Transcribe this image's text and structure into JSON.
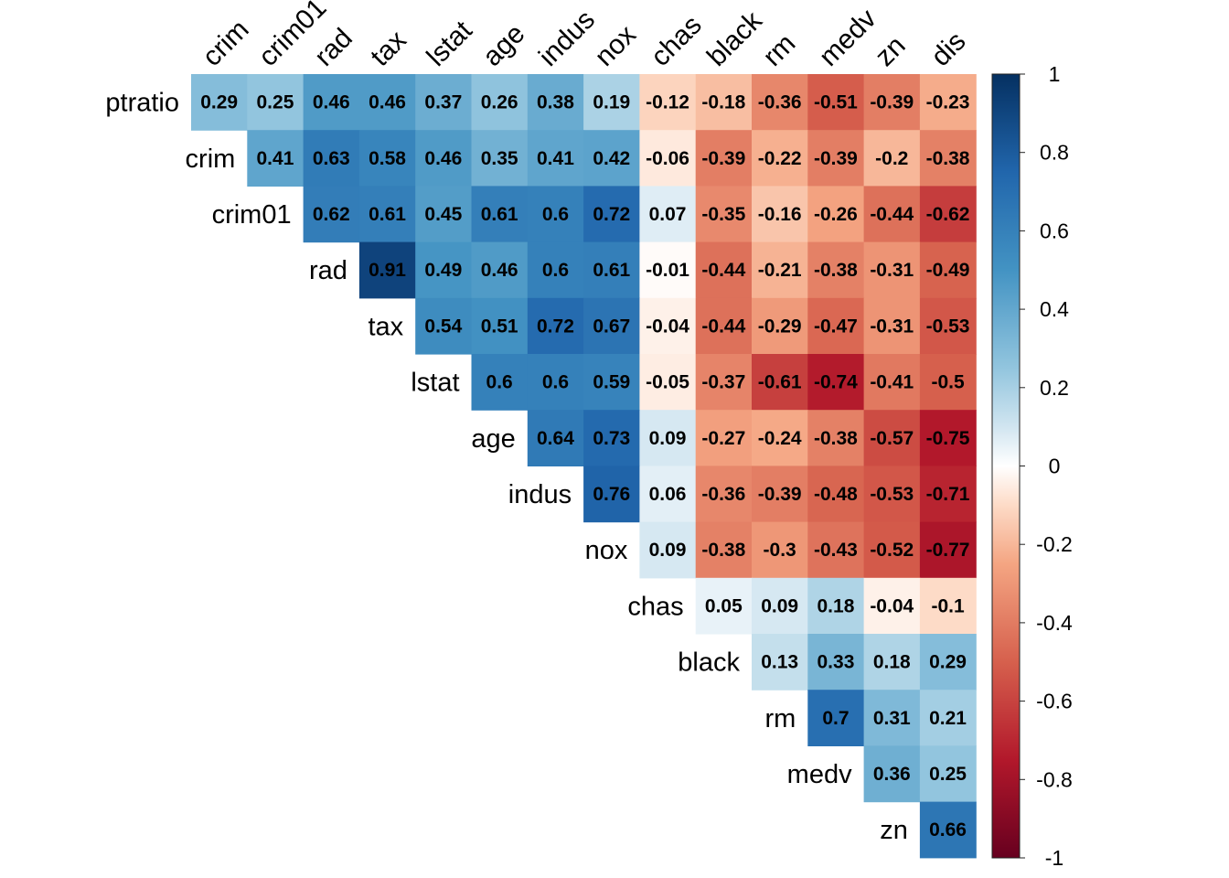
{
  "chart_data": {
    "type": "heatmap",
    "subtype": "correlation-matrix-upper-triangle",
    "columns": [
      "crim",
      "crim01",
      "rad",
      "tax",
      "lstat",
      "age",
      "indus",
      "nox",
      "chas",
      "black",
      "rm",
      "medv",
      "zn",
      "dis"
    ],
    "rows": [
      "ptratio",
      "crim",
      "crim01",
      "rad",
      "tax",
      "lstat",
      "age",
      "indus",
      "nox",
      "chas",
      "black",
      "rm",
      "medv",
      "zn"
    ],
    "values": [
      [
        0.29,
        0.25,
        0.46,
        0.46,
        0.37,
        0.26,
        0.38,
        0.19,
        -0.12,
        -0.18,
        -0.36,
        -0.51,
        -0.39,
        -0.23
      ],
      [
        null,
        0.41,
        0.63,
        0.58,
        0.46,
        0.35,
        0.41,
        0.42,
        -0.06,
        -0.39,
        -0.22,
        -0.39,
        -0.2,
        -0.38
      ],
      [
        null,
        null,
        0.62,
        0.61,
        0.45,
        0.61,
        0.6,
        0.72,
        0.07,
        -0.35,
        -0.16,
        -0.26,
        -0.44,
        -0.62
      ],
      [
        null,
        null,
        null,
        0.91,
        0.49,
        0.46,
        0.6,
        0.61,
        -0.01,
        -0.44,
        -0.21,
        -0.38,
        -0.31,
        -0.49
      ],
      [
        null,
        null,
        null,
        null,
        0.54,
        0.51,
        0.72,
        0.67,
        -0.04,
        -0.44,
        -0.29,
        -0.47,
        -0.31,
        -0.53
      ],
      [
        null,
        null,
        null,
        null,
        null,
        0.6,
        0.6,
        0.59,
        -0.05,
        -0.37,
        -0.61,
        -0.74,
        -0.41,
        -0.5
      ],
      [
        null,
        null,
        null,
        null,
        null,
        null,
        0.64,
        0.73,
        0.09,
        -0.27,
        -0.24,
        -0.38,
        -0.57,
        -0.75
      ],
      [
        null,
        null,
        null,
        null,
        null,
        null,
        null,
        0.76,
        0.06,
        -0.36,
        -0.39,
        -0.48,
        -0.53,
        -0.71
      ],
      [
        null,
        null,
        null,
        null,
        null,
        null,
        null,
        null,
        0.09,
        -0.38,
        -0.3,
        -0.43,
        -0.52,
        -0.77
      ],
      [
        null,
        null,
        null,
        null,
        null,
        null,
        null,
        null,
        null,
        0.05,
        0.09,
        0.18,
        -0.04,
        -0.1
      ],
      [
        null,
        null,
        null,
        null,
        null,
        null,
        null,
        null,
        null,
        null,
        0.13,
        0.33,
        0.18,
        0.29
      ],
      [
        null,
        null,
        null,
        null,
        null,
        null,
        null,
        null,
        null,
        null,
        null,
        0.7,
        0.31,
        0.21
      ],
      [
        null,
        null,
        null,
        null,
        null,
        null,
        null,
        null,
        null,
        null,
        null,
        null,
        0.36,
        0.25
      ],
      [
        null,
        null,
        null,
        null,
        null,
        null,
        null,
        null,
        null,
        null,
        null,
        null,
        null,
        0.66
      ]
    ],
    "color_scale": {
      "range": [
        -1,
        1
      ],
      "ticks": [
        "1",
        "0.8",
        "0.6",
        "0.4",
        "0.2",
        "0",
        "-0.2",
        "-0.4",
        "-0.6",
        "-0.8",
        "-1"
      ],
      "stops": [
        {
          "value": -1.0,
          "color": "#67001F"
        },
        {
          "value": -0.75,
          "color": "#B2182B"
        },
        {
          "value": -0.5,
          "color": "#D6604D"
        },
        {
          "value": -0.25,
          "color": "#F4A582"
        },
        {
          "value": -0.1,
          "color": "#FDDBC7"
        },
        {
          "value": 0.0,
          "color": "#FFFFFF"
        },
        {
          "value": 0.1,
          "color": "#D1E5F0"
        },
        {
          "value": 0.25,
          "color": "#92C5DE"
        },
        {
          "value": 0.5,
          "color": "#4393C3"
        },
        {
          "value": 0.75,
          "color": "#2166AC"
        },
        {
          "value": 1.0,
          "color": "#053061"
        }
      ],
      "legend_placement": "right"
    },
    "title": "",
    "grid": false
  }
}
